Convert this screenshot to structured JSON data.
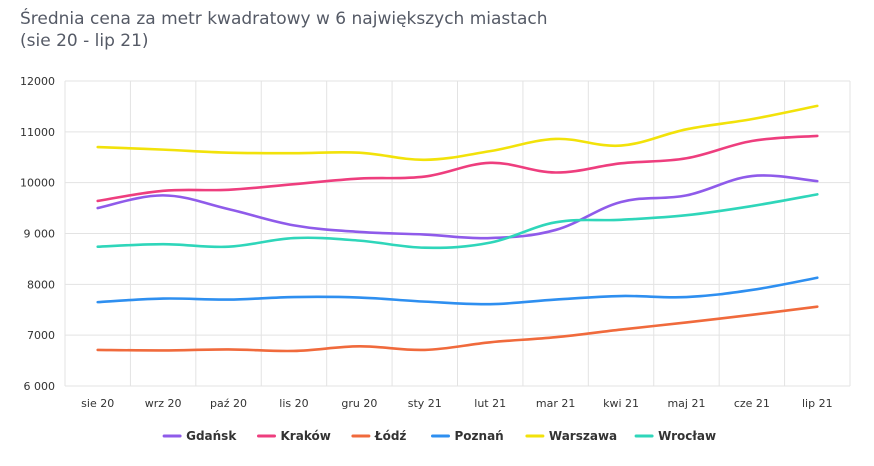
{
  "chart_data": {
    "type": "line",
    "title": "Średnia cena za metr kwadratowy w 6 największych miastach",
    "subtitle": "(sie 20 - lip 21)",
    "xlabel": "",
    "ylabel": "",
    "categories": [
      "sie 20",
      "wrz 20",
      "paź 20",
      "lis 20",
      "gru 20",
      "sty 21",
      "lut 21",
      "mar 21",
      "kwi 21",
      "maj 21",
      "cze 21",
      "lip 21"
    ],
    "y_ticks": [
      "6 000",
      "7000",
      "8000",
      "9 000",
      "10000",
      "11000",
      "12000"
    ],
    "ylim": [
      6000,
      12000
    ],
    "grid": true,
    "legend_position": "bottom",
    "series": [
      {
        "name": "Gdańsk",
        "color": "#8f5bea",
        "values": [
          9500,
          9750,
          9480,
          9160,
          9030,
          8980,
          8910,
          9070,
          9620,
          9750,
          10130,
          10030
        ]
      },
      {
        "name": "Kraków",
        "color": "#ee3e7e",
        "values": [
          9640,
          9840,
          9860,
          9970,
          10080,
          10120,
          10390,
          10200,
          10380,
          10480,
          10820,
          10920
        ]
      },
      {
        "name": "Łódź",
        "color": "#f06a3c",
        "values": [
          6710,
          6700,
          6720,
          6690,
          6780,
          6710,
          6860,
          6960,
          7110,
          7250,
          7400,
          7560
        ]
      },
      {
        "name": "Poznań",
        "color": "#2e8ff0",
        "values": [
          7650,
          7720,
          7700,
          7750,
          7740,
          7660,
          7610,
          7700,
          7770,
          7750,
          7890,
          8130
        ]
      },
      {
        "name": "Warszawa",
        "color": "#f2e20a",
        "values": [
          10700,
          10650,
          10590,
          10580,
          10590,
          10450,
          10620,
          10860,
          10730,
          11050,
          11250,
          11510
        ]
      },
      {
        "name": "Wrocław",
        "color": "#2fd6ba",
        "values": [
          8740,
          8790,
          8740,
          8910,
          8860,
          8720,
          8820,
          9220,
          9270,
          9360,
          9540,
          9770
        ]
      }
    ]
  }
}
